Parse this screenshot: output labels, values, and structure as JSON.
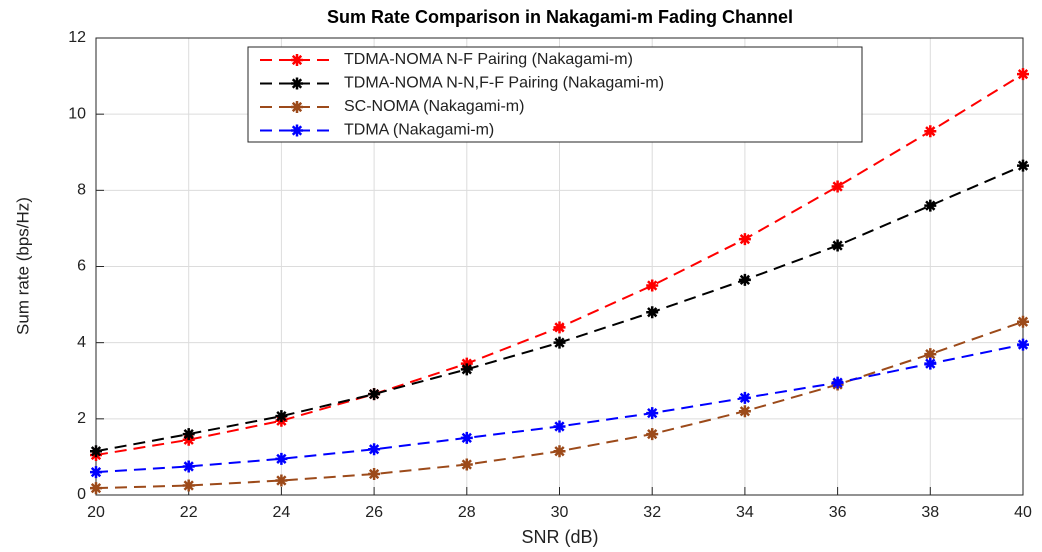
{
  "chart_data": {
    "type": "line",
    "title": "Sum Rate Comparison in Nakagami-m Fading Channel",
    "x_label": "SNR (dB)",
    "y_label": "Sum rate (bps/Hz)",
    "x": [
      20,
      22,
      24,
      26,
      28,
      30,
      32,
      34,
      36,
      38,
      40
    ],
    "series": [
      {
        "name": "TDMA-NOMA N-F Pairing (Nakagami-m)",
        "color": "#ff0000",
        "values": [
          1.05,
          1.45,
          1.95,
          2.65,
          3.45,
          4.4,
          5.5,
          6.72,
          8.1,
          9.55,
          11.05
        ]
      },
      {
        "name": "TDMA-NOMA N-N,F-F Pairing (Nakagami-m)",
        "color": "#000000",
        "values": [
          1.15,
          1.6,
          2.07,
          2.65,
          3.3,
          4.0,
          4.8,
          5.65,
          6.55,
          7.6,
          8.65
        ]
      },
      {
        "name": "SC-NOMA (Nakagami-m)",
        "color": "#9c4a1a",
        "values": [
          0.18,
          0.25,
          0.38,
          0.55,
          0.8,
          1.15,
          1.6,
          2.2,
          2.9,
          3.7,
          4.55
        ]
      },
      {
        "name": "TDMA (Nakagami-m)",
        "color": "#0000ff",
        "values": [
          0.6,
          0.75,
          0.95,
          1.2,
          1.5,
          1.8,
          2.15,
          2.55,
          2.95,
          3.45,
          3.95
        ]
      }
    ],
    "xlim": [
      20,
      40
    ],
    "xticks": [
      20,
      22,
      24,
      26,
      28,
      30,
      32,
      34,
      36,
      38,
      40
    ],
    "ylim": [
      0,
      12
    ],
    "yticks": [
      0,
      2,
      4,
      6,
      8,
      10,
      12
    ],
    "grid": true,
    "legend": "top"
  }
}
